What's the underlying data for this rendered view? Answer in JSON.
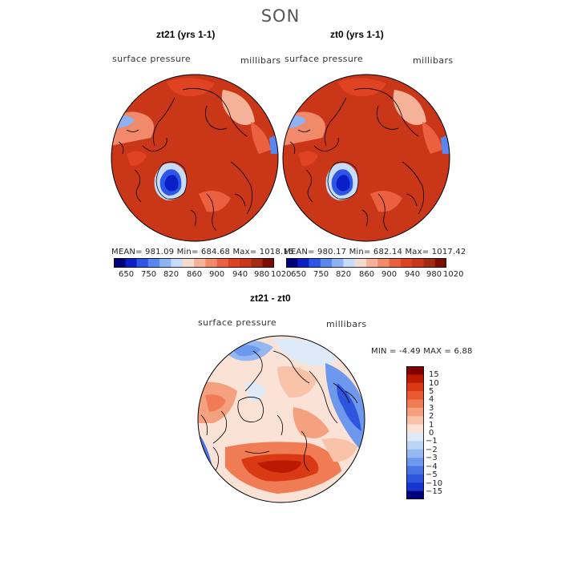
{
  "title": "SON",
  "colors": {
    "pressure_scale": [
      "#00007f",
      "#0b1fc8",
      "#2e55e6",
      "#5c86ef",
      "#8fb2f5",
      "#c7dcf9",
      "#f6dcd0",
      "#f4b298",
      "#f18a6a",
      "#eb6040",
      "#e04322",
      "#c93618",
      "#a52a10",
      "#7f0c00"
    ],
    "diff_scale": [
      "#7f0000",
      "#bb1a00",
      "#d93a14",
      "#ea5a32",
      "#f07c55",
      "#f5a07e",
      "#f9c3aa",
      "#fbe2d6",
      "#dfeaf8",
      "#bcd4f6",
      "#95b8f2",
      "#6e98ec",
      "#4975e4",
      "#2d55dd",
      "#1736cf",
      "#00007f"
    ]
  },
  "panels": [
    {
      "title": "zt21 (yrs 1-1)",
      "variable": "surface pressure",
      "units": "millibars",
      "stats": "MEAN= 981.09   Min= 684.68   Max= 1018.16",
      "colorbar_ticks": [
        "650",
        "750",
        "820",
        "860",
        "900",
        "940",
        "980",
        "1020"
      ]
    },
    {
      "title": "zt0 (yrs 1-1)",
      "variable": "surface pressure",
      "units": "millibars",
      "stats": "MEAN= 980.17   Min= 682.14   Max= 1017.42",
      "colorbar_ticks": [
        "650",
        "750",
        "820",
        "860",
        "900",
        "940",
        "980",
        "1020"
      ]
    }
  ],
  "difference": {
    "title": "zt21 - zt0",
    "variable": "surface pressure",
    "units": "millibars",
    "stats": "MIN =   -4.49  MAX =    6.88",
    "colorbar_ticks": [
      "15",
      "10",
      "5",
      "4",
      "3",
      "2",
      "1",
      "0",
      "−1",
      "−2",
      "−3",
      "−4",
      "−5",
      "−10",
      "−15"
    ]
  }
}
